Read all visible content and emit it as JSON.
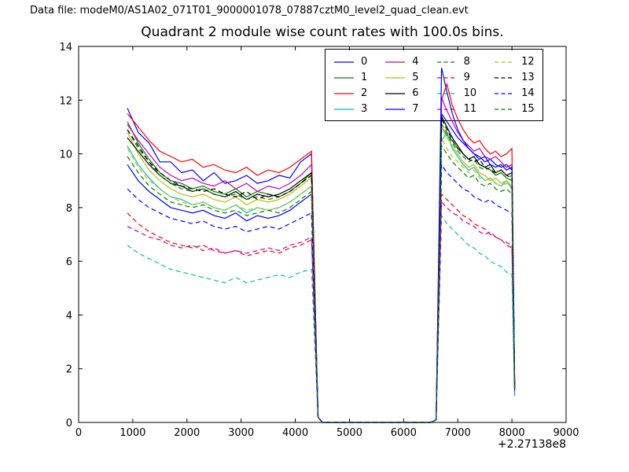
{
  "header": {
    "data_file_label": "Data file: modeM0/AS1A02_071T01_9000001078_07887cztM0_level2_quad_clean.evt"
  },
  "chart_data": {
    "type": "line",
    "title": "Quadrant 2 module wise count rates with 100.0s bins.",
    "xlabel": "",
    "ylabel": "",
    "x_offset_label": "+2.27138e8",
    "xlim": [
      0,
      9000
    ],
    "ylim": [
      0,
      14
    ],
    "x_ticks": [
      0,
      1000,
      2000,
      3000,
      4000,
      5000,
      6000,
      7000,
      8000,
      9000
    ],
    "y_ticks": [
      0,
      2,
      4,
      6,
      8,
      10,
      12,
      14
    ],
    "grid": false,
    "legend_position": "upper center-right, 4 columns",
    "x": [
      900,
      1100,
      1300,
      1500,
      1700,
      1900,
      2100,
      2300,
      2500,
      2700,
      2900,
      3100,
      3300,
      3500,
      3700,
      3900,
      4100,
      4300,
      4420,
      4500,
      5000,
      5500,
      6000,
      6500,
      6600,
      6700,
      6800,
      6900,
      7000,
      7100,
      7200,
      7300,
      7400,
      7500,
      7600,
      7700,
      7800,
      7900,
      8000,
      8050
    ],
    "series": [
      {
        "name": "0",
        "color": "#0000ff",
        "style": "solid",
        "values": [
          11.7,
          10.8,
          10.4,
          9.7,
          9.7,
          9.3,
          9.4,
          9.0,
          9.3,
          8.9,
          9.0,
          9.2,
          8.9,
          9.0,
          9.2,
          9.1,
          9.7,
          10.0,
          0.2,
          0,
          0,
          0,
          0,
          0,
          0.1,
          11.5,
          11.2,
          10.9,
          10.6,
          10.4,
          10.2,
          10.0,
          9.9,
          9.7,
          9.8,
          9.6,
          9.5,
          9.6,
          9.4,
          1.3
        ]
      },
      {
        "name": "1",
        "color": "#008000",
        "style": "solid",
        "values": [
          11.2,
          10.4,
          9.8,
          9.3,
          9.0,
          8.9,
          8.7,
          8.8,
          8.6,
          8.5,
          8.7,
          8.4,
          8.6,
          8.5,
          8.4,
          8.6,
          8.9,
          9.3,
          0.2,
          0,
          0,
          0,
          0,
          0,
          0.1,
          11.0,
          10.7,
          10.5,
          10.2,
          10.0,
          9.8,
          9.9,
          9.6,
          9.5,
          9.4,
          9.2,
          9.3,
          9.1,
          9.0,
          1.25
        ]
      },
      {
        "name": "2",
        "color": "#ff0000",
        "style": "solid",
        "values": [
          11.5,
          11.0,
          10.5,
          10.1,
          9.9,
          9.7,
          9.8,
          9.5,
          9.6,
          9.4,
          9.3,
          9.5,
          9.2,
          9.4,
          9.3,
          9.5,
          9.8,
          10.1,
          0.2,
          0,
          0,
          0,
          0,
          0,
          0.1,
          12.0,
          12.6,
          11.8,
          11.3,
          10.9,
          10.6,
          10.4,
          10.5,
          10.2,
          10.0,
          10.1,
          9.9,
          10.0,
          10.2,
          1.4
        ]
      },
      {
        "name": "3",
        "color": "#00bfbf",
        "style": "solid",
        "values": [
          10.3,
          9.6,
          9.1,
          8.7,
          8.4,
          8.3,
          8.1,
          8.2,
          8.0,
          7.9,
          8.1,
          7.8,
          8.0,
          7.9,
          8.0,
          8.2,
          8.5,
          8.8,
          0.2,
          0,
          0,
          0,
          0,
          0,
          0.1,
          10.5,
          10.8,
          10.2,
          9.9,
          9.6,
          9.4,
          9.5,
          9.2,
          9.0,
          9.1,
          8.9,
          8.8,
          9.0,
          8.7,
          1.2
        ]
      },
      {
        "name": "4",
        "color": "#bf00bf",
        "style": "solid",
        "values": [
          11.1,
          10.5,
          10.0,
          9.5,
          9.2,
          9.0,
          9.1,
          8.9,
          8.8,
          9.0,
          8.7,
          8.9,
          8.6,
          8.8,
          8.7,
          8.9,
          9.2,
          9.6,
          0.2,
          0,
          0,
          0,
          0,
          0,
          0.1,
          12.1,
          11.6,
          11.2,
          10.8,
          10.5,
          10.3,
          10.1,
          10.2,
          9.9,
          9.8,
          9.9,
          9.7,
          9.5,
          9.6,
          1.3
        ]
      },
      {
        "name": "5",
        "color": "#bfbf00",
        "style": "solid",
        "values": [
          10.8,
          10.0,
          9.4,
          9.0,
          8.7,
          8.5,
          8.4,
          8.5,
          8.3,
          8.2,
          8.4,
          8.1,
          8.3,
          8.2,
          8.3,
          8.5,
          8.8,
          9.1,
          0.2,
          0,
          0,
          0,
          0,
          0,
          0.1,
          11.0,
          10.6,
          10.3,
          10.0,
          9.7,
          9.5,
          9.6,
          9.3,
          9.2,
          9.0,
          9.1,
          8.9,
          9.0,
          8.8,
          1.25
        ]
      },
      {
        "name": "6",
        "color": "#000000",
        "style": "solid",
        "values": [
          10.6,
          10.1,
          9.6,
          9.2,
          8.9,
          8.8,
          8.6,
          8.7,
          8.5,
          8.4,
          8.6,
          8.3,
          8.5,
          8.4,
          8.5,
          8.7,
          9.0,
          9.3,
          0.2,
          0,
          0,
          0,
          0,
          0,
          0.1,
          11.4,
          11.0,
          10.6,
          10.3,
          10.0,
          9.8,
          9.9,
          9.6,
          9.5,
          9.6,
          9.3,
          9.4,
          9.2,
          9.3,
          1.3
        ]
      },
      {
        "name": "7",
        "color": "#0000ff",
        "style": "solid",
        "values": [
          9.6,
          9.0,
          8.6,
          8.3,
          8.0,
          7.9,
          7.8,
          7.9,
          7.7,
          7.6,
          7.8,
          7.5,
          7.7,
          7.6,
          7.7,
          7.9,
          8.2,
          8.5,
          0.2,
          0,
          0,
          0,
          0,
          0,
          0.1,
          13.2,
          12.3,
          11.5,
          10.9,
          10.5,
          10.2,
          10.0,
          9.8,
          9.9,
          9.6,
          9.5,
          9.6,
          9.4,
          9.5,
          1.35
        ]
      },
      {
        "name": "8",
        "color": "#008000",
        "style": "dashed",
        "values": [
          10.9,
          10.2,
          9.7,
          9.2,
          8.9,
          8.7,
          8.6,
          8.7,
          8.5,
          8.4,
          8.5,
          8.3,
          8.4,
          8.3,
          8.4,
          8.6,
          8.9,
          9.2,
          0.2,
          0,
          0,
          0,
          0,
          0,
          0.1,
          11.1,
          10.8,
          10.4,
          10.1,
          9.9,
          9.7,
          9.8,
          9.5,
          9.4,
          9.5,
          9.2,
          9.3,
          9.1,
          9.2,
          1.3
        ]
      },
      {
        "name": "9",
        "color": "#ff0000",
        "style": "dashed",
        "values": [
          7.8,
          7.4,
          7.1,
          6.9,
          6.7,
          6.6,
          6.5,
          6.6,
          6.4,
          6.3,
          6.4,
          6.2,
          6.3,
          6.4,
          6.3,
          6.5,
          6.6,
          6.8,
          0.2,
          0,
          0,
          0,
          0,
          0,
          0.1,
          8.5,
          8.3,
          8.1,
          7.9,
          7.7,
          7.6,
          7.4,
          7.3,
          7.2,
          7.0,
          6.9,
          6.8,
          6.6,
          6.5,
          1.0
        ]
      },
      {
        "name": "10",
        "color": "#00bfbf",
        "style": "dashed",
        "values": [
          6.6,
          6.3,
          6.1,
          5.9,
          5.7,
          5.6,
          5.5,
          5.4,
          5.3,
          5.2,
          5.4,
          5.2,
          5.3,
          5.4,
          5.5,
          5.4,
          5.6,
          5.7,
          0.2,
          0,
          0,
          0,
          0,
          0,
          0.1,
          7.7,
          7.4,
          7.2,
          7.0,
          6.8,
          6.6,
          6.5,
          6.3,
          6.2,
          6.0,
          5.9,
          5.8,
          5.6,
          5.5,
          0.9
        ]
      },
      {
        "name": "11",
        "color": "#bf00bf",
        "style": "dashed",
        "values": [
          7.3,
          7.1,
          6.9,
          6.8,
          6.6,
          6.5,
          6.6,
          6.4,
          6.5,
          6.3,
          6.4,
          6.3,
          6.4,
          6.5,
          6.4,
          6.6,
          6.7,
          6.9,
          0.2,
          0,
          0,
          0,
          0,
          0,
          0.1,
          8.2,
          8.0,
          7.8,
          7.7,
          7.5,
          7.4,
          7.3,
          7.1,
          7.0,
          7.1,
          6.9,
          6.8,
          6.7,
          6.6,
          1.0
        ]
      },
      {
        "name": "12",
        "color": "#bfbf00",
        "style": "dashed",
        "values": [
          10.2,
          9.5,
          9.0,
          8.7,
          8.4,
          8.2,
          8.1,
          8.2,
          8.0,
          7.9,
          8.1,
          7.9,
          8.0,
          7.9,
          8.0,
          8.2,
          8.5,
          8.8,
          0.2,
          0,
          0,
          0,
          0,
          0,
          0.1,
          10.6,
          10.2,
          9.9,
          9.7,
          9.5,
          9.3,
          9.4,
          9.1,
          9.0,
          9.1,
          8.9,
          8.8,
          8.9,
          8.7,
          1.2
        ]
      },
      {
        "name": "13",
        "color": "#000000",
        "style": "dashed",
        "values": [
          10.9,
          10.3,
          9.7,
          9.3,
          9.0,
          8.8,
          8.7,
          8.6,
          8.7,
          8.5,
          8.4,
          8.6,
          8.3,
          8.5,
          8.4,
          8.6,
          8.9,
          9.2,
          0.2,
          0,
          0,
          0,
          0,
          0,
          0.1,
          11.3,
          10.9,
          10.5,
          10.2,
          10.0,
          9.8,
          9.7,
          9.8,
          9.5,
          9.4,
          9.3,
          9.4,
          9.2,
          9.1,
          1.3
        ]
      },
      {
        "name": "14",
        "color": "#0000ff",
        "style": "dashed",
        "values": [
          8.7,
          8.3,
          8.0,
          7.8,
          7.6,
          7.5,
          7.4,
          7.5,
          7.3,
          7.2,
          7.3,
          7.1,
          7.2,
          7.3,
          7.2,
          7.4,
          7.6,
          7.8,
          0.2,
          0,
          0,
          0,
          0,
          0,
          0.1,
          9.6,
          9.3,
          9.1,
          8.9,
          8.7,
          8.6,
          8.4,
          8.3,
          8.2,
          8.3,
          8.1,
          8.0,
          7.9,
          7.8,
          1.1
        ]
      },
      {
        "name": "15",
        "color": "#008000",
        "style": "dashed",
        "values": [
          9.9,
          9.3,
          8.8,
          8.5,
          8.2,
          8.1,
          8.0,
          8.1,
          7.9,
          7.8,
          7.9,
          7.7,
          7.8,
          7.9,
          7.8,
          8.0,
          8.3,
          8.6,
          0.2,
          0,
          0,
          0,
          0,
          0,
          0.1,
          10.3,
          10.0,
          9.7,
          9.5,
          9.3,
          9.1,
          9.2,
          8.9,
          8.8,
          8.9,
          8.7,
          8.6,
          8.7,
          8.5,
          1.2
        ]
      }
    ]
  }
}
